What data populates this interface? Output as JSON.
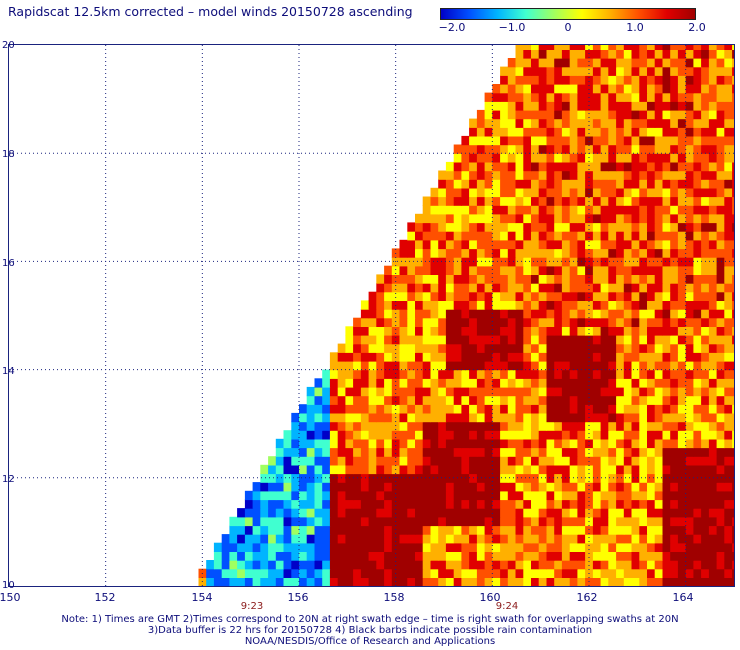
{
  "title": "Rapidscat 12.5km corrected – model winds 20150728 ascending",
  "colorbar": {
    "ticks": [
      "−2.0",
      "−1.0",
      "0",
      "1.0",
      "2.0"
    ],
    "colors": [
      "#0000c8",
      "#0050ff",
      "#00b4ff",
      "#40ffd0",
      "#a0ff60",
      "#ffff00",
      "#ffb000",
      "#ff5000",
      "#e00000",
      "#a00000"
    ]
  },
  "map": {
    "lat_labels": [
      "20",
      "18",
      "16",
      "14",
      "12",
      "10"
    ],
    "lon_labels": [
      "150",
      "152",
      "154",
      "156",
      "158",
      "160",
      "162",
      "164"
    ],
    "time_labels": [
      "9:23",
      "9:24"
    ]
  },
  "chart_data": {
    "type": "heatmap",
    "title": "Rapidscat 12.5km corrected – model winds 20150728 ascending",
    "xlabel": "",
    "ylabel": "",
    "xlim": [
      150,
      165
    ],
    "ylim": [
      10,
      20
    ],
    "value_range": [
      -2.0,
      2.0
    ],
    "swath_left_edge": {
      "lon_at_10N": 153.8,
      "lon_at_20N": 160.5
    },
    "regions": [
      {
        "lon": [
          154.0,
          156.5
        ],
        "lat": [
          10.0,
          16.5
        ],
        "value": -1.0
      },
      {
        "lon": [
          156.5,
          158.5
        ],
        "lat": [
          10.0,
          12.0
        ],
        "value": 2.0
      },
      {
        "lon": [
          158.5,
          160.0
        ],
        "lat": [
          11.0,
          13.0
        ],
        "value": 2.0
      },
      {
        "lon": [
          159.0,
          160.5
        ],
        "lat": [
          14.0,
          15.0
        ],
        "value": 2.0
      },
      {
        "lon": [
          161.0,
          162.5
        ],
        "lat": [
          13.0,
          14.5
        ],
        "value": 2.0
      },
      {
        "lon": [
          163.5,
          165.0
        ],
        "lat": [
          10.0,
          12.5
        ],
        "value": 2.0
      },
      {
        "lon": [
          160.5,
          165.0
        ],
        "lat": [
          14.5,
          20.0
        ],
        "value": 1.0
      }
    ]
  },
  "notes": [
    "Note: 1) Times are GMT 2)Times correspond to 20N at right swath edge – time is right swath for overlapping swaths at 20N",
    "3)Data buffer is 22 hrs for 20150728 4) Black barbs indicate possible rain contamination",
    "NOAA/NESDIS/Office of Research and Applications"
  ]
}
